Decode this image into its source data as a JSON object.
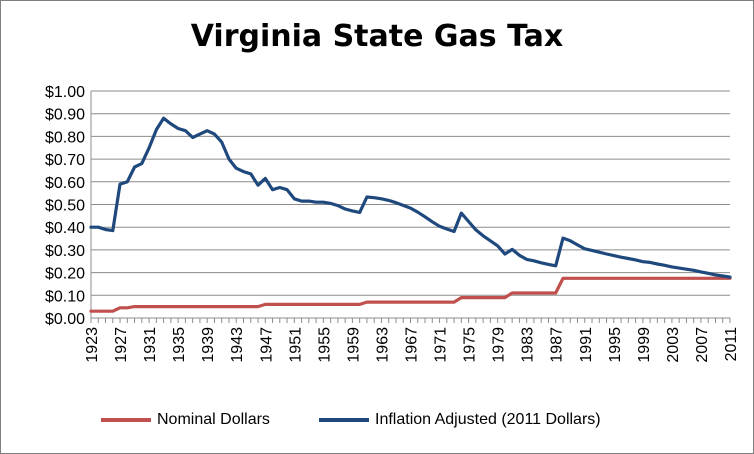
{
  "chart_data": {
    "type": "line",
    "title": "Virginia State Gas Tax",
    "xlabel": "",
    "ylabel": "",
    "ylim": [
      0,
      1.0
    ],
    "y_ticks": [
      "$0.00",
      "$0.10",
      "$0.20",
      "$0.30",
      "$0.40",
      "$0.50",
      "$0.60",
      "$0.70",
      "$0.80",
      "$0.90",
      "$1.00"
    ],
    "x_ticks": [
      "1923",
      "1927",
      "1931",
      "1935",
      "1939",
      "1943",
      "1947",
      "1951",
      "1955",
      "1959",
      "1963",
      "1967",
      "1971",
      "1975",
      "1979",
      "1983",
      "1987",
      "1991",
      "1995",
      "1999",
      "2003",
      "2007",
      "2011"
    ],
    "grid": "horizontal",
    "legend_position": "bottom",
    "x": [
      1923,
      1924,
      1925,
      1926,
      1927,
      1928,
      1929,
      1930,
      1931,
      1932,
      1933,
      1934,
      1935,
      1936,
      1937,
      1938,
      1939,
      1940,
      1941,
      1942,
      1943,
      1944,
      1945,
      1946,
      1947,
      1948,
      1949,
      1950,
      1951,
      1952,
      1953,
      1954,
      1955,
      1956,
      1957,
      1958,
      1959,
      1960,
      1961,
      1962,
      1963,
      1964,
      1965,
      1966,
      1967,
      1968,
      1969,
      1970,
      1971,
      1972,
      1973,
      1974,
      1975,
      1976,
      1977,
      1978,
      1979,
      1980,
      1981,
      1982,
      1983,
      1984,
      1985,
      1986,
      1987,
      1988,
      1989,
      1990,
      1991,
      1992,
      1993,
      1994,
      1995,
      1996,
      1997,
      1998,
      1999,
      2000,
      2001,
      2002,
      2003,
      2004,
      2005,
      2006,
      2007,
      2008,
      2009,
      2010,
      2011
    ],
    "series": [
      {
        "name": "Nominal Dollars",
        "color": "#c0504d",
        "values": [
          0.03,
          0.03,
          0.03,
          0.03,
          0.045,
          0.045,
          0.05,
          0.05,
          0.05,
          0.05,
          0.05,
          0.05,
          0.05,
          0.05,
          0.05,
          0.05,
          0.05,
          0.05,
          0.05,
          0.05,
          0.05,
          0.05,
          0.05,
          0.05,
          0.06,
          0.06,
          0.06,
          0.06,
          0.06,
          0.06,
          0.06,
          0.06,
          0.06,
          0.06,
          0.06,
          0.06,
          0.06,
          0.06,
          0.07,
          0.07,
          0.07,
          0.07,
          0.07,
          0.07,
          0.07,
          0.07,
          0.07,
          0.07,
          0.07,
          0.07,
          0.07,
          0.09,
          0.09,
          0.09,
          0.09,
          0.09,
          0.09,
          0.09,
          0.11,
          0.11,
          0.11,
          0.11,
          0.11,
          0.11,
          0.11,
          0.175,
          0.175,
          0.175,
          0.175,
          0.175,
          0.175,
          0.175,
          0.175,
          0.175,
          0.175,
          0.175,
          0.175,
          0.175,
          0.175,
          0.175,
          0.175,
          0.175,
          0.175,
          0.175,
          0.175,
          0.175,
          0.175,
          0.175,
          0.175
        ]
      },
      {
        "name": "Inflation Adjusted (2011 Dollars)",
        "color": "#1f497d",
        "values": [
          0.4,
          0.4,
          0.39,
          0.385,
          0.59,
          0.6,
          0.665,
          0.68,
          0.75,
          0.83,
          0.88,
          0.855,
          0.835,
          0.825,
          0.795,
          0.81,
          0.825,
          0.81,
          0.775,
          0.7,
          0.66,
          0.645,
          0.635,
          0.585,
          0.615,
          0.565,
          0.575,
          0.565,
          0.525,
          0.515,
          0.515,
          0.51,
          0.51,
          0.505,
          0.495,
          0.48,
          0.472,
          0.465,
          0.533,
          0.53,
          0.525,
          0.518,
          0.508,
          0.496,
          0.484,
          0.466,
          0.446,
          0.424,
          0.404,
          0.392,
          0.381,
          0.462,
          0.425,
          0.388,
          0.362,
          0.34,
          0.318,
          0.282,
          0.302,
          0.276,
          0.258,
          0.252,
          0.243,
          0.236,
          0.23,
          0.352,
          0.34,
          0.322,
          0.305,
          0.298,
          0.29,
          0.282,
          0.275,
          0.268,
          0.262,
          0.256,
          0.248,
          0.245,
          0.238,
          0.232,
          0.225,
          0.22,
          0.215,
          0.21,
          0.203,
          0.197,
          0.19,
          0.185,
          0.18
        ]
      }
    ]
  },
  "legend": [
    {
      "label": "Nominal Dollars",
      "color": "#c0504d"
    },
    {
      "label": "Inflation Adjusted (2011 Dollars)",
      "color": "#1f497d"
    }
  ]
}
